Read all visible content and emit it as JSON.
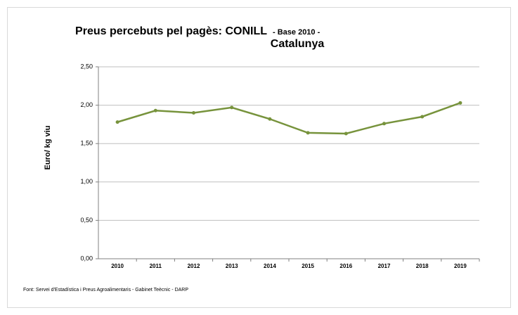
{
  "chart_data": {
    "type": "line",
    "title": "Preus percebuts pel pagès: CONILL",
    "subtitle": "- Base 2010 -",
    "title_line2": "Catalunya",
    "y_label": "Euro/ kg viu",
    "source": "Font: Servei d'Estadística i Preus Agroalimentaris - Gabinet Teècnic - DARP",
    "categories": [
      "2010",
      "2011",
      "2012",
      "2013",
      "2014",
      "2015",
      "2016",
      "2017",
      "2018",
      "2019"
    ],
    "series": [
      {
        "name": "CONILL",
        "color": "#77933c",
        "values": [
          1.78,
          1.93,
          1.9,
          1.97,
          1.82,
          1.64,
          1.63,
          1.76,
          1.85,
          2.03
        ]
      }
    ],
    "ylim": [
      0,
      2.5
    ],
    "yticks": [
      {
        "value": 0,
        "label": "0,00"
      },
      {
        "value": 0.5,
        "label": "0,50"
      },
      {
        "value": 1,
        "label": "1,00"
      },
      {
        "value": 1.5,
        "label": "1,50"
      },
      {
        "value": 2,
        "label": "2,00"
      },
      {
        "value": 2.5,
        "label": "2,50"
      }
    ],
    "grid": true
  }
}
